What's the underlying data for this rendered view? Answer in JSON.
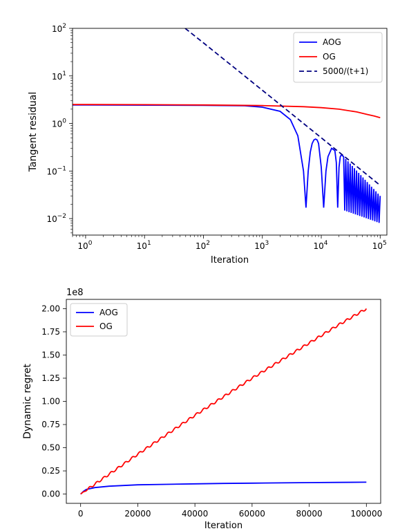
{
  "chart_data": [
    {
      "type": "line",
      "xscale": "log",
      "yscale": "log",
      "xlabel": "Iteration",
      "ylabel": "Tangent residual",
      "xlim": [
        0.6,
        130000
      ],
      "ylim": [
        0.0045,
        100
      ],
      "x_ticks": [
        {
          "value": 1,
          "base": "10",
          "exp": "0"
        },
        {
          "value": 10,
          "base": "10",
          "exp": "1"
        },
        {
          "value": 100,
          "base": "10",
          "exp": "2"
        },
        {
          "value": 1000,
          "base": "10",
          "exp": "3"
        },
        {
          "value": 10000,
          "base": "10",
          "exp": "4"
        },
        {
          "value": 100000,
          "base": "10",
          "exp": "5"
        }
      ],
      "y_ticks": [
        {
          "value": 0.01,
          "base": "10",
          "exp": "−2"
        },
        {
          "value": 0.1,
          "base": "10",
          "exp": "−1"
        },
        {
          "value": 1,
          "base": "10",
          "exp": "0"
        },
        {
          "value": 10,
          "base": "10",
          "exp": "1"
        },
        {
          "value": 100,
          "base": "10",
          "exp": "2"
        }
      ],
      "legend_position": "top-right",
      "grid": false,
      "series": [
        {
          "name": "AOG",
          "color": "#0000ff",
          "style": "solid",
          "x": [
            0.6,
            100,
            500,
            1000,
            2000,
            3000,
            4000,
            5000,
            5500,
            6000,
            6500,
            7000,
            7500,
            8000,
            8500,
            9000,
            10000,
            11000,
            12000,
            13000,
            15000,
            17000,
            18000,
            19000,
            20000,
            21000,
            22000,
            24000
          ],
          "y": [
            2.45,
            2.4,
            2.35,
            2.2,
            1.8,
            1.2,
            0.55,
            0.1,
            0.017,
            0.1,
            0.25,
            0.38,
            0.45,
            0.47,
            0.45,
            0.38,
            0.12,
            0.017,
            0.1,
            0.2,
            0.3,
            0.27,
            0.15,
            0.017,
            0.12,
            0.2,
            0.22,
            0.2
          ],
          "oscillation_tail": {
            "x_start": 24000,
            "x_end": 100000,
            "upper_start": 0.2,
            "upper_end": 0.03,
            "lower_start": 0.015,
            "lower_end": 0.008
          }
        },
        {
          "name": "OG",
          "color": "#ff0000",
          "style": "solid",
          "x": [
            0.6,
            1,
            10,
            100,
            1000,
            5000,
            10000,
            20000,
            40000,
            60000,
            80000,
            100000
          ],
          "y": [
            2.5,
            2.5,
            2.48,
            2.45,
            2.38,
            2.25,
            2.15,
            2.0,
            1.75,
            1.55,
            1.43,
            1.32
          ]
        },
        {
          "name": "5000/(t+1)",
          "color": "#000080",
          "style": "dashed",
          "x": [
            49,
            100,
            1000,
            10000,
            100000
          ],
          "y": [
            100,
            49.5,
            5.0,
            0.5,
            0.05
          ]
        }
      ]
    },
    {
      "type": "line",
      "xscale": "linear",
      "yscale": "linear",
      "xlabel": "Iteration",
      "ylabel": "Dynamic regret",
      "offset_text": "1e8",
      "xlim": [
        -5000,
        105000
      ],
      "ylim": [
        -0.1,
        2.1
      ],
      "x_ticks": [
        0,
        20000,
        40000,
        60000,
        80000,
        100000
      ],
      "x_tick_labels": [
        "0",
        "20000",
        "40000",
        "60000",
        "80000",
        "100000"
      ],
      "y_ticks": [
        0,
        0.25,
        0.5,
        0.75,
        1.0,
        1.25,
        1.5,
        1.75,
        2.0
      ],
      "y_tick_labels": [
        "0.00",
        "0.25",
        "0.50",
        "0.75",
        "1.00",
        "1.25",
        "1.50",
        "1.75",
        "2.00"
      ],
      "legend_position": "top-left",
      "grid": false,
      "series": [
        {
          "name": "AOG",
          "color": "#0000ff",
          "x": [
            0,
            1000,
            2000,
            5000,
            10000,
            20000,
            30000,
            40000,
            50000,
            60000,
            70000,
            80000,
            90000,
            100000
          ],
          "y": [
            0.0,
            0.03,
            0.05,
            0.07,
            0.085,
            0.1,
            0.105,
            0.11,
            0.115,
            0.118,
            0.121,
            0.124,
            0.126,
            0.128
          ]
        },
        {
          "name": "OG",
          "color": "#ff0000",
          "x": [
            0,
            10000,
            20000,
            30000,
            40000,
            50000,
            60000,
            70000,
            80000,
            90000,
            100000
          ],
          "y": [
            0.0,
            0.215,
            0.43,
            0.64,
            0.85,
            1.05,
            1.25,
            1.44,
            1.63,
            1.82,
            2.0
          ],
          "ripple_period": 2500,
          "ripple_amplitude": 0.012
        }
      ]
    }
  ]
}
